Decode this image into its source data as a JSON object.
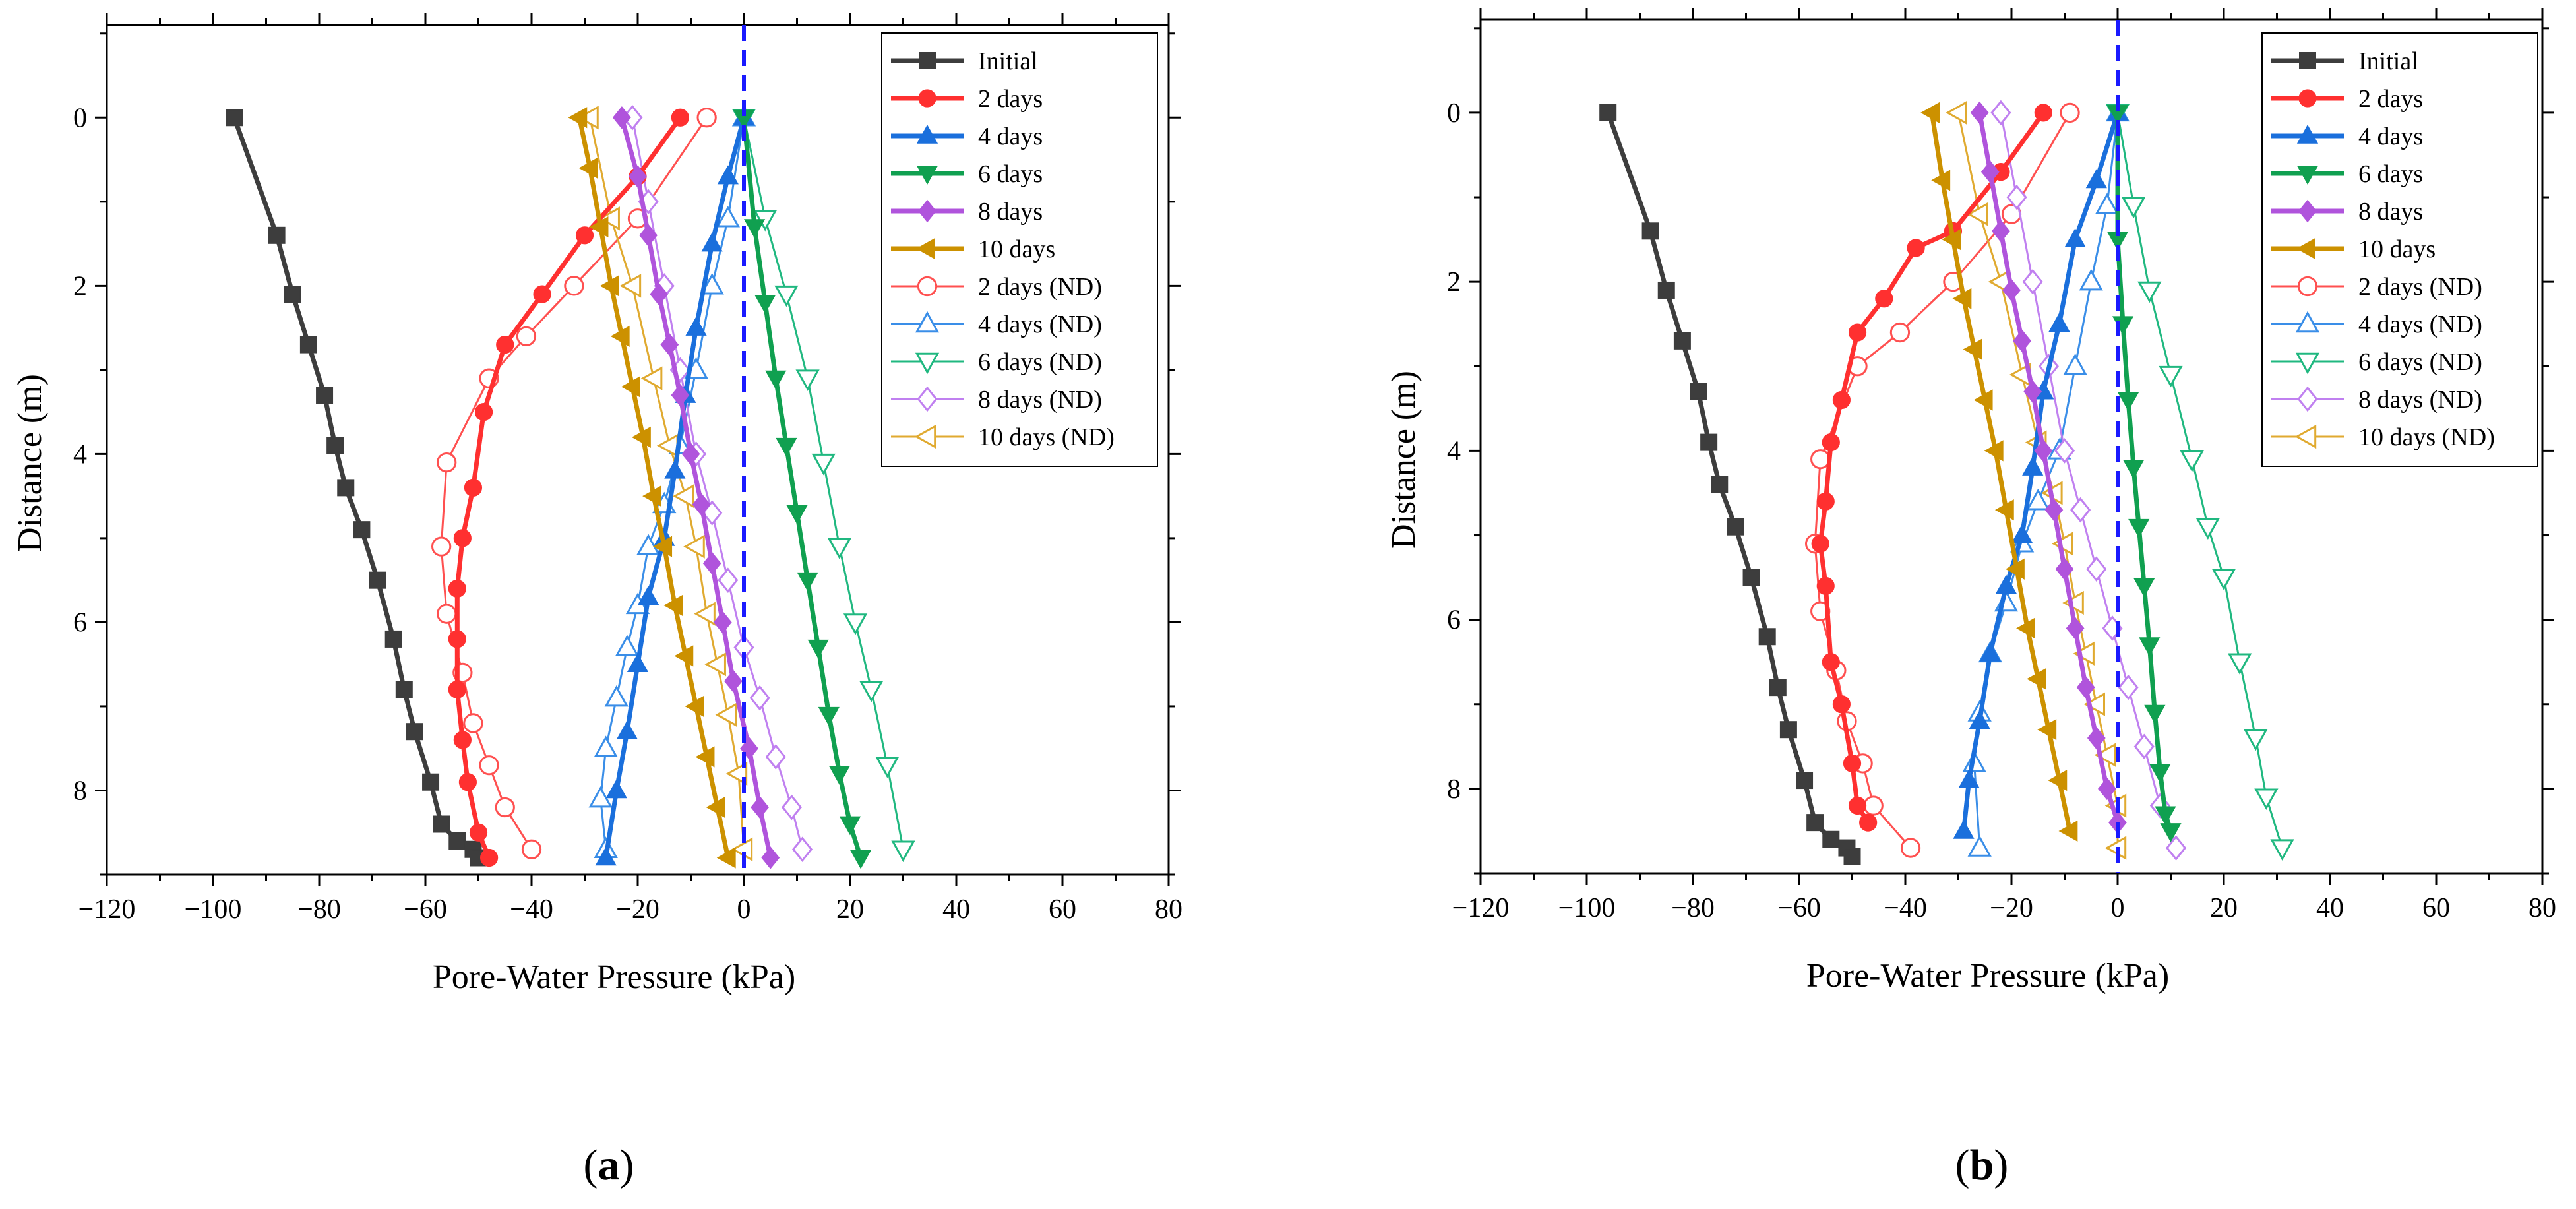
{
  "chart_data": [
    {
      "type": "line",
      "panel_label": "a",
      "xlabel": "Pore-Water Pressure (kPa)",
      "ylabel": "Distance (m)",
      "xlim": [
        -120,
        80
      ],
      "ylim": [
        9,
        -1.1
      ],
      "y_inverted": true,
      "x_ticks": [
        -120,
        -100,
        -80,
        -60,
        -40,
        -20,
        0,
        20,
        40,
        60,
        80
      ],
      "y_ticks": [
        0,
        2,
        4,
        6,
        8
      ],
      "grid": false,
      "legend_position": "top-right",
      "reference_line": {
        "x": 0,
        "style": "dashed",
        "color": "#1a1aff"
      },
      "series": [
        {
          "name": "Initial",
          "color": "#3d3d3d",
          "marker": "square",
          "filled": true,
          "x": [
            -96,
            -88,
            -85,
            -82,
            -79,
            -77,
            -75,
            -72,
            -69,
            -66,
            -64,
            -62,
            -59,
            -57,
            -54,
            -51,
            -50
          ],
          "y": [
            0,
            1.4,
            2.1,
            2.7,
            3.3,
            3.9,
            4.4,
            4.9,
            5.5,
            6.2,
            6.8,
            7.3,
            7.9,
            8.4,
            8.6,
            8.7,
            8.8
          ]
        },
        {
          "name": "2 days",
          "color": "#ff3030",
          "marker": "circle",
          "filled": true,
          "x": [
            -12,
            -20,
            -30,
            -38,
            -45,
            -49,
            -51,
            -53,
            -54,
            -54,
            -54,
            -53,
            -52,
            -50,
            -48
          ],
          "y": [
            0,
            0.7,
            1.4,
            2.1,
            2.7,
            3.5,
            4.4,
            5.0,
            5.6,
            6.2,
            6.8,
            7.4,
            7.9,
            8.5,
            8.8
          ]
        },
        {
          "name": "4 days",
          "color": "#1a6fdc",
          "marker": "triangle-up",
          "filled": true,
          "x": [
            0,
            -3,
            -6,
            -9,
            -11,
            -13,
            -15,
            -18,
            -20,
            -22,
            -24,
            -26
          ],
          "y": [
            0,
            0.7,
            1.5,
            2.5,
            3.3,
            4.2,
            5.0,
            5.7,
            6.5,
            7.3,
            8.0,
            8.8
          ]
        },
        {
          "name": "6 days",
          "color": "#10a050",
          "marker": "triangle-down",
          "filled": true,
          "x": [
            0,
            2,
            4,
            6,
            8,
            10,
            12,
            14,
            16,
            18,
            20,
            22
          ],
          "y": [
            0,
            1.3,
            2.2,
            3.1,
            3.9,
            4.7,
            5.5,
            6.3,
            7.1,
            7.8,
            8.4,
            8.8
          ]
        },
        {
          "name": "8 days",
          "color": "#b054dc",
          "marker": "diamond",
          "filled": true,
          "x": [
            -23,
            -20,
            -18,
            -16,
            -14,
            -12,
            -10,
            -8,
            -6,
            -4,
            -2,
            1,
            3,
            5
          ],
          "y": [
            0,
            0.7,
            1.4,
            2.1,
            2.7,
            3.3,
            4.0,
            4.6,
            5.3,
            6.0,
            6.7,
            7.5,
            8.2,
            8.8
          ]
        },
        {
          "name": "10 days",
          "color": "#cc9100",
          "marker": "triangle-left",
          "filled": true,
          "x": [
            -31,
            -29,
            -27,
            -25,
            -23,
            -21,
            -19,
            -17,
            -15,
            -13,
            -11,
            -9,
            -7,
            -5,
            -3
          ],
          "y": [
            0,
            0.6,
            1.3,
            2.0,
            2.6,
            3.2,
            3.8,
            4.5,
            5.1,
            5.8,
            6.4,
            7.0,
            7.6,
            8.2,
            8.8
          ]
        },
        {
          "name": "2 days (ND)",
          "color": "#ff5050",
          "marker": "circle",
          "filled": false,
          "x": [
            -7,
            -20,
            -32,
            -41,
            -48,
            -56,
            -57,
            -56,
            -53,
            -51,
            -48,
            -45,
            -40
          ],
          "y": [
            0,
            1.2,
            2.0,
            2.6,
            3.1,
            4.1,
            5.1,
            5.9,
            6.6,
            7.2,
            7.7,
            8.2,
            8.7
          ]
        },
        {
          "name": "4 days (ND)",
          "color": "#3a8ee8",
          "marker": "triangle-up",
          "filled": false,
          "x": [
            0,
            -3,
            -6,
            -9,
            -12,
            -15,
            -18,
            -20,
            -22,
            -24,
            -26,
            -27,
            -26
          ],
          "y": [
            0,
            1.2,
            2.0,
            3.0,
            3.9,
            4.6,
            5.1,
            5.8,
            6.3,
            6.9,
            7.5,
            8.1,
            8.7
          ]
        },
        {
          "name": "6 days (ND)",
          "color": "#20b880",
          "marker": "triangle-down",
          "filled": false,
          "x": [
            0,
            4,
            8,
            12,
            15,
            18,
            21,
            24,
            27,
            30
          ],
          "y": [
            0,
            1.2,
            2.1,
            3.1,
            4.1,
            5.1,
            6.0,
            6.8,
            7.7,
            8.7
          ]
        },
        {
          "name": "8 days (ND)",
          "color": "#c080f0",
          "marker": "diamond",
          "filled": false,
          "x": [
            -21,
            -18,
            -15,
            -12,
            -9,
            -6,
            -3,
            0,
            3,
            6,
            9,
            11
          ],
          "y": [
            0,
            1.0,
            2.0,
            3.0,
            4.0,
            4.7,
            5.5,
            6.3,
            6.9,
            7.6,
            8.2,
            8.7
          ]
        },
        {
          "name": "10 days (ND)",
          "color": "#e0aa30",
          "marker": "triangle-left",
          "filled": false,
          "x": [
            -29,
            -25,
            -21,
            -17,
            -14,
            -11,
            -9,
            -7,
            -5,
            -3,
            -1,
            0
          ],
          "y": [
            0,
            1.2,
            2.0,
            3.1,
            3.9,
            4.5,
            5.1,
            5.9,
            6.5,
            7.1,
            7.8,
            8.7
          ]
        }
      ]
    },
    {
      "type": "line",
      "panel_label": "b",
      "xlabel": "Pore-Water Pressure (kPa)",
      "ylabel": "Distance (m)",
      "xlim": [
        -120,
        80
      ],
      "ylim": [
        9,
        -1.1
      ],
      "y_inverted": true,
      "x_ticks": [
        -120,
        -100,
        -80,
        -60,
        -40,
        -20,
        0,
        20,
        40,
        60,
        80
      ],
      "y_ticks": [
        0,
        2,
        4,
        6,
        8
      ],
      "grid": false,
      "legend_position": "top-right",
      "reference_line": {
        "x": 0,
        "style": "dashed",
        "color": "#1a1aff"
      },
      "series": [
        {
          "name": "Initial",
          "color": "#3d3d3d",
          "marker": "square",
          "filled": true,
          "x": [
            -96,
            -88,
            -85,
            -82,
            -79,
            -77,
            -75,
            -72,
            -69,
            -66,
            -64,
            -62,
            -59,
            -57,
            -54,
            -51,
            -50
          ],
          "y": [
            0,
            1.4,
            2.1,
            2.7,
            3.3,
            3.9,
            4.4,
            4.9,
            5.5,
            6.2,
            6.8,
            7.3,
            7.9,
            8.4,
            8.6,
            8.7,
            8.8
          ]
        },
        {
          "name": "2 days",
          "color": "#ff3030",
          "marker": "circle",
          "filled": true,
          "x": [
            -14,
            -22,
            -31,
            -38,
            -44,
            -49,
            -52,
            -54,
            -55,
            -56,
            -55,
            -54,
            -52,
            -50,
            -49,
            -47
          ],
          "y": [
            0,
            0.7,
            1.4,
            1.6,
            2.2,
            2.6,
            3.4,
            3.9,
            4.6,
            5.1,
            5.6,
            6.5,
            7.0,
            7.7,
            8.2,
            8.4
          ]
        },
        {
          "name": "4 days",
          "color": "#1a6fdc",
          "marker": "triangle-up",
          "filled": true,
          "x": [
            0,
            -4,
            -8,
            -11,
            -14,
            -16,
            -18,
            -21,
            -24,
            -26,
            -28,
            -29
          ],
          "y": [
            0,
            0.8,
            1.5,
            2.5,
            3.3,
            4.2,
            5.0,
            5.6,
            6.4,
            7.2,
            7.9,
            8.5
          ]
        },
        {
          "name": "6 days",
          "color": "#10a050",
          "marker": "triangle-down",
          "filled": true,
          "x": [
            0,
            0,
            1,
            2,
            3,
            4,
            5,
            6,
            7,
            8,
            9,
            10
          ],
          "y": [
            0,
            1.5,
            2.5,
            3.4,
            4.2,
            4.9,
            5.6,
            6.3,
            7.1,
            7.8,
            8.3,
            8.5
          ]
        },
        {
          "name": "8 days",
          "color": "#b054dc",
          "marker": "diamond",
          "filled": true,
          "x": [
            -26,
            -24,
            -22,
            -20,
            -18,
            -16,
            -14,
            -12,
            -10,
            -8,
            -6,
            -4,
            -2,
            0
          ],
          "y": [
            0,
            0.7,
            1.4,
            2.1,
            2.7,
            3.3,
            4.0,
            4.7,
            5.4,
            6.1,
            6.8,
            7.4,
            8.0,
            8.4
          ]
        },
        {
          "name": "10 days",
          "color": "#cc9100",
          "marker": "triangle-left",
          "filled": true,
          "x": [
            -35,
            -33,
            -31,
            -29,
            -27,
            -25,
            -23,
            -21,
            -19,
            -17,
            -15,
            -13,
            -11,
            -9
          ],
          "y": [
            0,
            0.8,
            1.5,
            2.2,
            2.8,
            3.4,
            4.0,
            4.7,
            5.4,
            6.1,
            6.7,
            7.3,
            7.9,
            8.5
          ]
        },
        {
          "name": "2 days (ND)",
          "color": "#ff5050",
          "marker": "circle",
          "filled": false,
          "x": [
            -9,
            -20,
            -31,
            -41,
            -49,
            -56,
            -57,
            -56,
            -53,
            -51,
            -48,
            -46,
            -39
          ],
          "y": [
            0,
            1.2,
            2.0,
            2.6,
            3.0,
            4.1,
            5.1,
            5.9,
            6.6,
            7.2,
            7.7,
            8.2,
            8.7
          ]
        },
        {
          "name": "4 days (ND)",
          "color": "#3a8ee8",
          "marker": "triangle-up",
          "filled": false,
          "x": [
            0,
            -2,
            -5,
            -8,
            -11,
            -15,
            -18,
            -21,
            -24,
            -26,
            -27,
            -26
          ],
          "y": [
            0,
            1.1,
            2.0,
            3.0,
            4.0,
            4.6,
            5.1,
            5.8,
            6.4,
            7.1,
            7.7,
            8.7
          ]
        },
        {
          "name": "6 days (ND)",
          "color": "#20b880",
          "marker": "triangle-down",
          "filled": false,
          "x": [
            0,
            3,
            6,
            10,
            14,
            17,
            20,
            23,
            26,
            28,
            31
          ],
          "y": [
            0,
            1.1,
            2.1,
            3.1,
            4.1,
            4.9,
            5.5,
            6.5,
            7.4,
            8.1,
            8.7
          ]
        },
        {
          "name": "8 days (ND)",
          "color": "#c080f0",
          "marker": "diamond",
          "filled": false,
          "x": [
            -22,
            -19,
            -16,
            -13,
            -10,
            -7,
            -4,
            -1,
            2,
            5,
            8,
            11
          ],
          "y": [
            0,
            1.0,
            2.0,
            3.0,
            4.0,
            4.7,
            5.4,
            6.1,
            6.8,
            7.5,
            8.2,
            8.7
          ]
        },
        {
          "name": "10 days (ND)",
          "color": "#e0aa30",
          "marker": "triangle-left",
          "filled": false,
          "x": [
            -30,
            -26,
            -22,
            -18,
            -15,
            -12,
            -10,
            -8,
            -6,
            -4,
            -2,
            0,
            0
          ],
          "y": [
            0,
            1.2,
            2.0,
            3.1,
            3.9,
            4.5,
            5.1,
            5.8,
            6.4,
            7.0,
            7.6,
            8.2,
            8.7
          ]
        }
      ]
    }
  ]
}
